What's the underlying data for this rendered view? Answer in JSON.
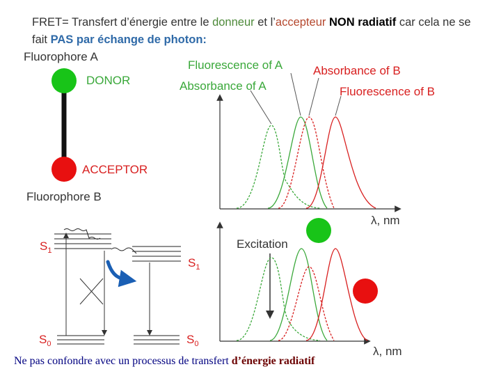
{
  "header": {
    "part1": "FRET= Transfert d’énergie entre le ",
    "donneur": "donneur",
    "part2": " et l’",
    "accepteur": "accepteur",
    "part3": "  ",
    "non_radiatif": "NON radiatif",
    "part4": " car cela ne se fait ",
    "pas_photon": "PAS par échange de photon:"
  },
  "molecule": {
    "fluorophore_a": "Fluorophore A",
    "donor": "DONOR",
    "acceptor": "ACCEPTOR",
    "fluorophore_b": "Fluorophore B",
    "colors": {
      "donor": "#18c418",
      "acceptor": "#e81010"
    }
  },
  "spectra_labels": {
    "fluorescence_a": "Fluorescence of A",
    "absorbance_b": "Absorbance of B",
    "absorbance_a": "Absorbance of A",
    "fluorescence_b": "Fluorescence of B",
    "axis_lambda": "λ, nm"
  },
  "jablonski": {
    "s1_left": "S",
    "s1_left_sub": "1",
    "s0_left": "S",
    "s0_left_sub": "0",
    "s1_right": "S",
    "s1_right_sub": "1",
    "s0_right": "S",
    "s0_right_sub": "0"
  },
  "excitation": {
    "label": "Excitation",
    "axis_lambda": "λ, nm"
  },
  "footer": {
    "text": "Ne pas confondre avec un processus de transfert ",
    "bold": "d’énergie radiatif"
  }
}
